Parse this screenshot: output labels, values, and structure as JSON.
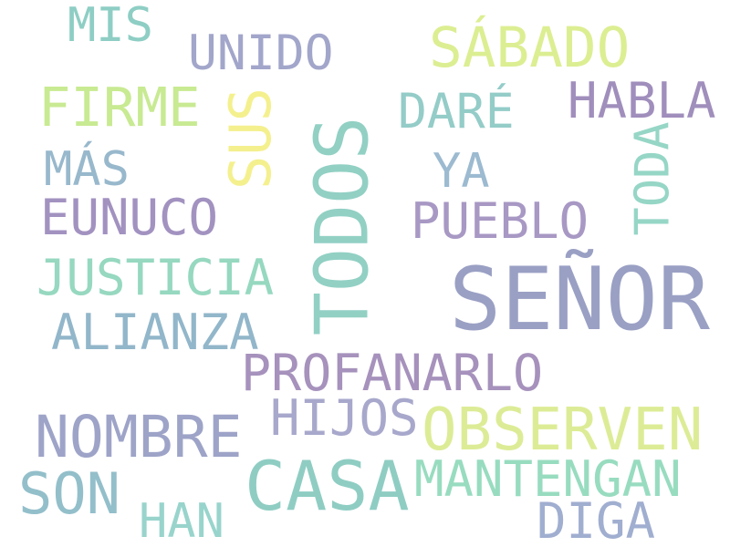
{
  "words": [
    {
      "id": "senor",
      "text": "SEÑOR",
      "color": "#9aa0c4"
    },
    {
      "id": "todos",
      "text": "TODOS",
      "color": "#92d0c4"
    },
    {
      "id": "casa",
      "text": "CASA",
      "color": "#8fcdc3"
    },
    {
      "id": "observen",
      "text": "OBSERVEN",
      "color": "#dcec96"
    },
    {
      "id": "nombre",
      "text": "NOMBRE",
      "color": "#9ea4c8"
    },
    {
      "id": "sabado",
      "text": "SÁBADO",
      "color": "#dcee92"
    },
    {
      "id": "sus",
      "text": "SUS",
      "color": "#f4f08e"
    },
    {
      "id": "son",
      "text": "SON",
      "color": "#93bfca"
    },
    {
      "id": "firme",
      "text": "FIRME",
      "color": "#c8ea92"
    },
    {
      "id": "profanarlo",
      "text": "PROFANARLO",
      "color": "#a692bc"
    },
    {
      "id": "alianza",
      "text": "ALIANZA",
      "color": "#92b6ca"
    },
    {
      "id": "justicia",
      "text": "JUSTICIA",
      "color": "#96d8c0"
    },
    {
      "id": "mantengan",
      "text": "MANTENGAN",
      "color": "#98dcc0"
    },
    {
      "id": "hijos",
      "text": "HIJOS",
      "color": "#a8a8cc"
    },
    {
      "id": "pueblo",
      "text": "PUEBLO",
      "color": "#a898c4"
    },
    {
      "id": "habla",
      "text": "HABLA",
      "color": "#a08ebc"
    },
    {
      "id": "eunuco",
      "text": "EUNUCO",
      "color": "#a292c0"
    },
    {
      "id": "diga",
      "text": "DIGA",
      "color": "#a0aed0"
    },
    {
      "id": "han",
      "text": "HAN",
      "color": "#98d4cc"
    },
    {
      "id": "unido",
      "text": "UNIDO",
      "color": "#a2a6ca"
    },
    {
      "id": "dare",
      "text": "DARÉ",
      "color": "#94ccc8"
    },
    {
      "id": "toda",
      "text": "TODA",
      "color": "#96d6c6"
    },
    {
      "id": "mis",
      "text": "MIS",
      "color": "#8ecec4"
    },
    {
      "id": "mas",
      "text": "MÁS",
      "color": "#98b8cc"
    },
    {
      "id": "ya",
      "text": "YA",
      "color": "#9cbad0"
    }
  ]
}
